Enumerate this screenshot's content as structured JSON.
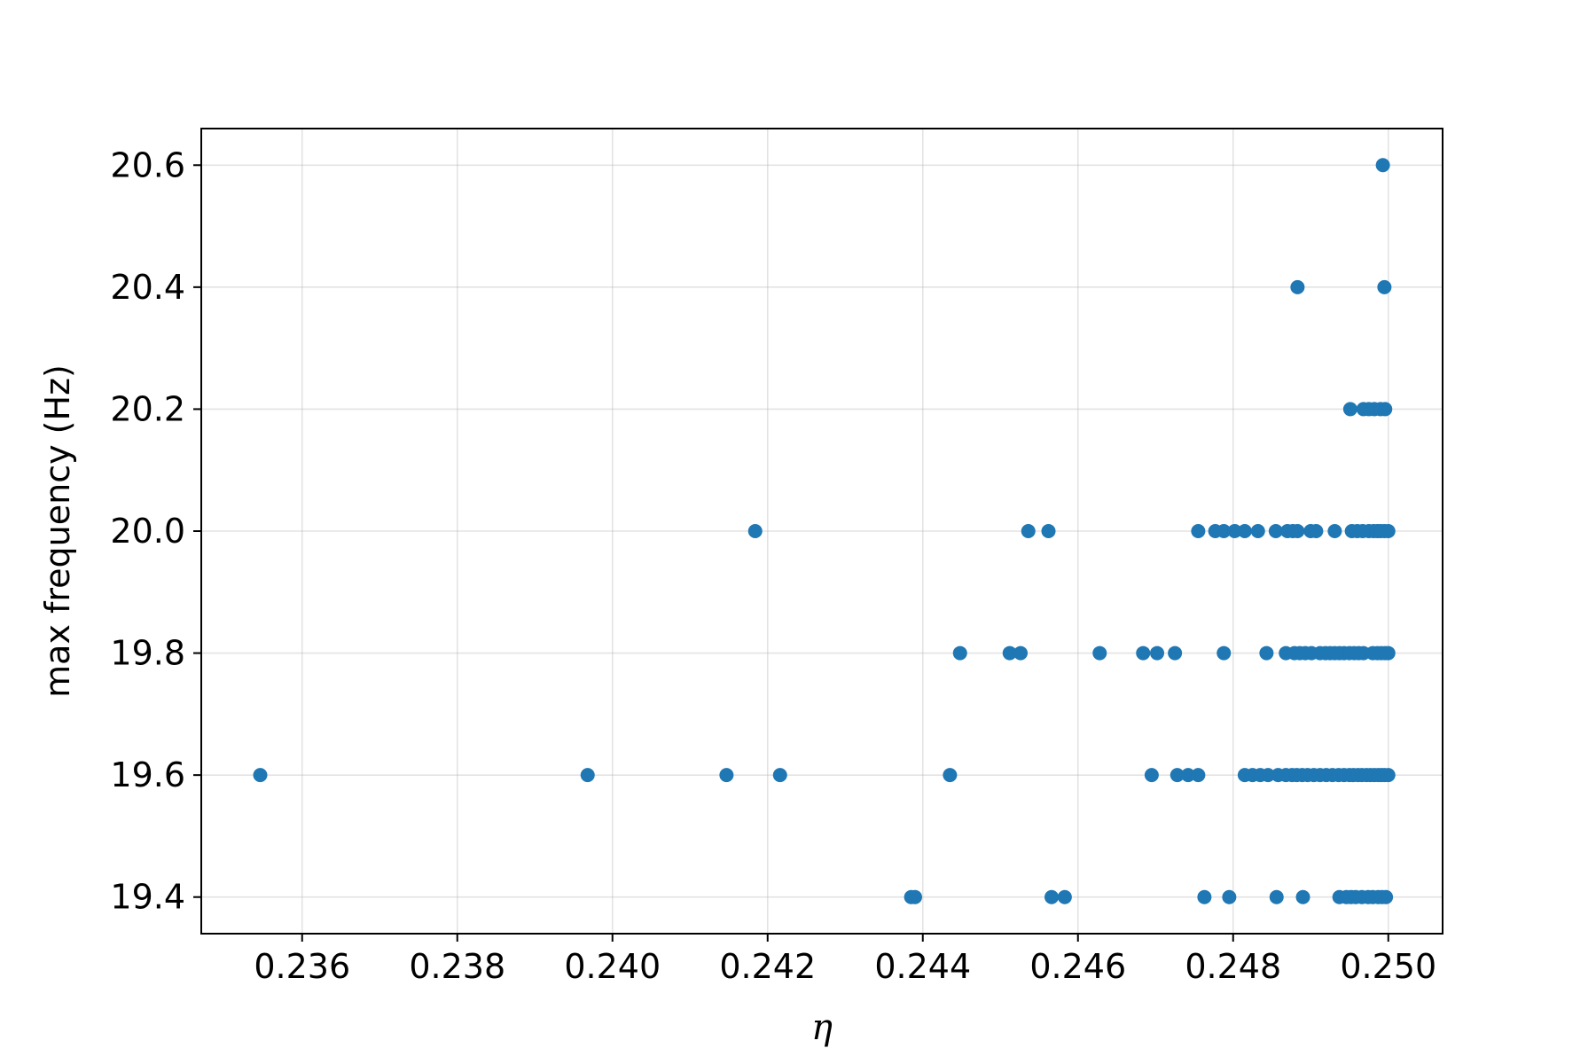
{
  "chart_data": {
    "type": "scatter",
    "title": "",
    "xlabel": "η",
    "ylabel": "max frequency (Hz)",
    "xlim": [
      0.2347,
      0.2507
    ],
    "ylim": [
      19.34,
      20.66
    ],
    "x_ticks": [
      "0.236",
      "0.238",
      "0.240",
      "0.242",
      "0.244",
      "0.246",
      "0.248",
      "0.250"
    ],
    "y_ticks": [
      "19.4",
      "19.6",
      "19.8",
      "20.0",
      "20.2",
      "20.4",
      "20.6"
    ],
    "grid": true,
    "legend": "none",
    "marker_color": "#1f77b4",
    "points": [
      [
        0.24993,
        20.6
      ],
      [
        0.24883,
        20.4
      ],
      [
        0.24995,
        20.4
      ],
      [
        0.24951,
        20.2
      ],
      [
        0.24968,
        20.2
      ],
      [
        0.24975,
        20.2
      ],
      [
        0.24982,
        20.2
      ],
      [
        0.2499,
        20.2
      ],
      [
        0.24996,
        20.2
      ],
      [
        0.24184,
        20.0
      ],
      [
        0.24536,
        20.0
      ],
      [
        0.24562,
        20.0
      ],
      [
        0.24755,
        20.0
      ],
      [
        0.24777,
        20.0
      ],
      [
        0.24788,
        20.0
      ],
      [
        0.24802,
        20.0
      ],
      [
        0.24815,
        20.0
      ],
      [
        0.24832,
        20.0
      ],
      [
        0.24855,
        20.0
      ],
      [
        0.2487,
        20.0
      ],
      [
        0.24877,
        20.0
      ],
      [
        0.24883,
        20.0
      ],
      [
        0.249,
        20.0
      ],
      [
        0.24907,
        20.0
      ],
      [
        0.24931,
        20.0
      ],
      [
        0.24953,
        20.0
      ],
      [
        0.2496,
        20.0
      ],
      [
        0.24967,
        20.0
      ],
      [
        0.24975,
        20.0
      ],
      [
        0.24981,
        20.0
      ],
      [
        0.24986,
        20.0
      ],
      [
        0.2499,
        20.0
      ],
      [
        0.24995,
        20.0
      ],
      [
        0.25,
        20.0
      ],
      [
        0.24448,
        19.8
      ],
      [
        0.24512,
        19.8
      ],
      [
        0.24526,
        19.8
      ],
      [
        0.24628,
        19.8
      ],
      [
        0.24684,
        19.8
      ],
      [
        0.24702,
        19.8
      ],
      [
        0.24725,
        19.8
      ],
      [
        0.24788,
        19.8
      ],
      [
        0.24843,
        19.8
      ],
      [
        0.24868,
        19.8
      ],
      [
        0.24879,
        19.8
      ],
      [
        0.24886,
        19.8
      ],
      [
        0.24893,
        19.8
      ],
      [
        0.24901,
        19.8
      ],
      [
        0.24912,
        19.8
      ],
      [
        0.24919,
        19.8
      ],
      [
        0.24925,
        19.8
      ],
      [
        0.24931,
        19.8
      ],
      [
        0.24937,
        19.8
      ],
      [
        0.24943,
        19.8
      ],
      [
        0.2495,
        19.8
      ],
      [
        0.24956,
        19.8
      ],
      [
        0.24962,
        19.8
      ],
      [
        0.24968,
        19.8
      ],
      [
        0.2498,
        19.8
      ],
      [
        0.24986,
        19.8
      ],
      [
        0.24991,
        19.8
      ],
      [
        0.24996,
        19.8
      ],
      [
        0.25,
        19.8
      ],
      [
        0.23546,
        19.6
      ],
      [
        0.23968,
        19.6
      ],
      [
        0.24147,
        19.6
      ],
      [
        0.24216,
        19.6
      ],
      [
        0.24435,
        19.6
      ],
      [
        0.24695,
        19.6
      ],
      [
        0.24728,
        19.6
      ],
      [
        0.24742,
        19.6
      ],
      [
        0.24755,
        19.6
      ],
      [
        0.24815,
        19.6
      ],
      [
        0.24825,
        19.6
      ],
      [
        0.24835,
        19.6
      ],
      [
        0.24845,
        19.6
      ],
      [
        0.24858,
        19.6
      ],
      [
        0.24868,
        19.6
      ],
      [
        0.24876,
        19.6
      ],
      [
        0.24882,
        19.6
      ],
      [
        0.24889,
        19.6
      ],
      [
        0.24896,
        19.6
      ],
      [
        0.24904,
        19.6
      ],
      [
        0.24912,
        19.6
      ],
      [
        0.2492,
        19.6
      ],
      [
        0.24928,
        19.6
      ],
      [
        0.24936,
        19.6
      ],
      [
        0.24943,
        19.6
      ],
      [
        0.2495,
        19.6
      ],
      [
        0.24955,
        19.6
      ],
      [
        0.24961,
        19.6
      ],
      [
        0.24966,
        19.6
      ],
      [
        0.24972,
        19.6
      ],
      [
        0.24977,
        19.6
      ],
      [
        0.24982,
        19.6
      ],
      [
        0.24987,
        19.6
      ],
      [
        0.24991,
        19.6
      ],
      [
        0.24995,
        19.6
      ],
      [
        0.25,
        19.6
      ],
      [
        0.24385,
        19.4
      ],
      [
        0.2439,
        19.4
      ],
      [
        0.24566,
        19.4
      ],
      [
        0.24583,
        19.4
      ],
      [
        0.24763,
        19.4
      ],
      [
        0.24795,
        19.4
      ],
      [
        0.24856,
        19.4
      ],
      [
        0.2489,
        19.4
      ],
      [
        0.24937,
        19.4
      ],
      [
        0.24946,
        19.4
      ],
      [
        0.24952,
        19.4
      ],
      [
        0.24958,
        19.4
      ],
      [
        0.24966,
        19.4
      ],
      [
        0.24974,
        19.4
      ],
      [
        0.2498,
        19.4
      ],
      [
        0.24987,
        19.4
      ],
      [
        0.24992,
        19.4
      ],
      [
        0.24997,
        19.4
      ]
    ]
  }
}
